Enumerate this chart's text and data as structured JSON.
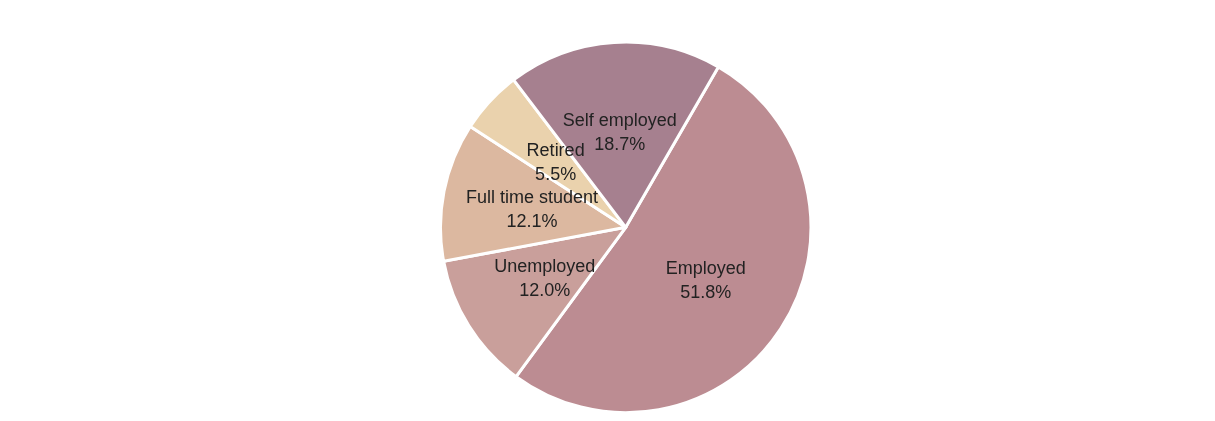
{
  "chart_data": {
    "type": "pie",
    "categories": [
      "Employed",
      "Unemployed",
      "Full time student",
      "Retired",
      "Self employed"
    ],
    "values": [
      51.8,
      12.0,
      12.1,
      5.5,
      18.7
    ],
    "value_labels": [
      "51.8%",
      "12.0%",
      "12.1%",
      "5.5%",
      "18.7%"
    ],
    "colors": [
      "#bc8c92",
      "#c99f9b",
      "#dcb8a0",
      "#ead2ad",
      "#a6808f"
    ],
    "legend": false
  }
}
